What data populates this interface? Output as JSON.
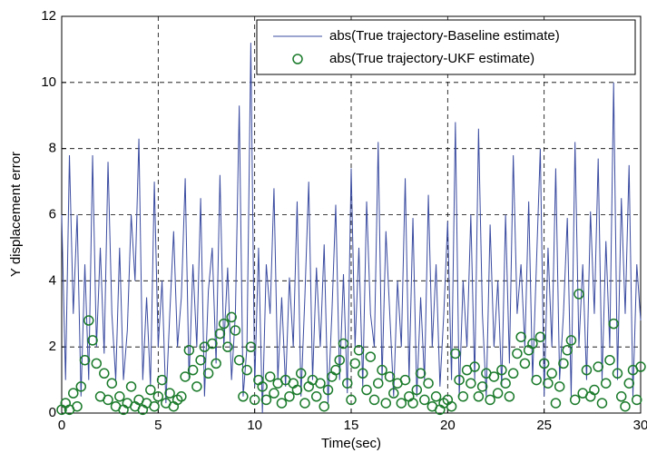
{
  "chart_data": {
    "type": "line",
    "xlabel": "Time(sec)",
    "ylabel": "Y displacement error",
    "xlim": [
      0,
      30
    ],
    "ylim": [
      0,
      12
    ],
    "xticks": [
      0,
      5,
      10,
      15,
      20,
      25,
      30
    ],
    "yticks": [
      0,
      2,
      4,
      6,
      8,
      10,
      12
    ],
    "grid": true,
    "legend": "upper right",
    "x": [
      0,
      0.2,
      0.4,
      0.6,
      0.8,
      1,
      1.2,
      1.4,
      1.6,
      1.8,
      2,
      2.2,
      2.4,
      2.6,
      2.8,
      3,
      3.2,
      3.4,
      3.6,
      3.8,
      4,
      4.2,
      4.4,
      4.6,
      4.8,
      5,
      5.2,
      5.4,
      5.6,
      5.8,
      6,
      6.2,
      6.4,
      6.6,
      6.8,
      7,
      7.2,
      7.4,
      7.6,
      7.8,
      8,
      8.2,
      8.4,
      8.6,
      8.8,
      9,
      9.2,
      9.4,
      9.6,
      9.8,
      10,
      10.2,
      10.4,
      10.6,
      10.8,
      11,
      11.2,
      11.4,
      11.6,
      11.8,
      12,
      12.2,
      12.4,
      12.6,
      12.8,
      13,
      13.2,
      13.4,
      13.6,
      13.8,
      14,
      14.2,
      14.4,
      14.6,
      14.8,
      15,
      15.2,
      15.4,
      15.6,
      15.8,
      16,
      16.2,
      16.4,
      16.6,
      16.8,
      17,
      17.2,
      17.4,
      17.6,
      17.8,
      18,
      18.2,
      18.4,
      18.6,
      18.8,
      19,
      19.2,
      19.4,
      19.6,
      19.8,
      20,
      20.2,
      20.4,
      20.6,
      20.8,
      21,
      21.2,
      21.4,
      21.6,
      21.8,
      22,
      22.2,
      22.4,
      22.6,
      22.8,
      23,
      23.2,
      23.4,
      23.6,
      23.8,
      24,
      24.2,
      24.4,
      24.6,
      24.8,
      25,
      25.2,
      25.4,
      25.6,
      25.8,
      26,
      26.2,
      26.4,
      26.6,
      26.8,
      27,
      27.2,
      27.4,
      27.6,
      27.8,
      28,
      28.2,
      28.4,
      28.6,
      28.8,
      29,
      29.2,
      29.4,
      29.6,
      29.8,
      30
    ],
    "series": [
      {
        "name": "abs(True trajectory-Baseline estimate)",
        "color": "#3a4ba0",
        "mode": "line",
        "values": [
          6,
          1,
          7.8,
          3,
          6,
          0.5,
          4.5,
          1,
          7.8,
          2,
          5,
          1.8,
          7.6,
          3,
          1,
          5,
          1,
          2.5,
          6,
          4,
          8.3,
          1,
          3.5,
          0.8,
          7,
          2,
          4,
          0.3,
          3,
          5.5,
          2,
          3.5,
          7.1,
          1,
          4.5,
          2,
          6.5,
          0.5,
          3.7,
          5,
          1.5,
          7.2,
          2,
          4.4,
          1,
          3,
          9.3,
          0.5,
          2,
          11.2,
          0.8,
          5,
          0,
          4.5,
          3,
          6.8,
          1,
          3.5,
          0.8,
          4.1,
          2,
          6.4,
          0.5,
          3.5,
          7,
          1,
          4.4,
          2,
          5.1,
          0.3,
          3,
          6.3,
          1,
          4.2,
          0.6,
          7.4,
          2,
          5,
          0.8,
          6.4,
          3,
          2,
          8.2,
          1,
          5.5,
          3,
          0.5,
          4,
          2,
          7.1,
          1,
          5.9,
          0.5,
          3.5,
          1,
          6.6,
          2,
          4.5,
          0.8,
          3,
          5.8,
          1,
          8.8,
          0.5,
          4,
          2,
          6,
          1,
          8.6,
          3,
          0.5,
          5.7,
          2,
          4,
          0.8,
          6,
          1.5,
          7.8,
          3,
          4.5,
          2,
          6.4,
          1,
          4.5,
          8,
          0.5,
          5,
          2,
          7.4,
          1,
          3,
          5.9,
          0.5,
          8.2,
          2,
          4.5,
          1,
          6.1,
          3,
          7.7,
          1,
          5.2,
          2,
          10,
          1,
          6.5,
          3,
          7.5,
          0.5,
          4.5,
          2.8
        ]
      },
      {
        "name": "abs(True trajectory-UKF estimate)",
        "color": "#1a7a2a",
        "mode": "marker",
        "values": [
          0.1,
          0.3,
          0.1,
          0.6,
          0.2,
          0.8,
          1.6,
          2.8,
          2.2,
          1.5,
          0.5,
          1.2,
          0.4,
          0.9,
          0.2,
          0.5,
          0.1,
          0.3,
          0.8,
          0.2,
          0.4,
          0.1,
          0.3,
          0.7,
          0.2,
          0.5,
          1,
          0.3,
          0.6,
          0.2,
          0.4,
          0.5,
          1.1,
          1.9,
          1.3,
          0.8,
          1.6,
          2,
          1.2,
          2.1,
          1.5,
          2.4,
          2.7,
          2,
          2.9,
          2.5,
          1.6,
          0.5,
          1.3,
          2,
          0.4,
          1,
          0.8,
          0.4,
          1.1,
          0.6,
          0.9,
          0.3,
          1,
          0.5,
          0.9,
          0.7,
          1.2,
          0.3,
          0.8,
          1,
          0.5,
          0.9,
          0.2,
          0.7,
          1.1,
          1.3,
          1.6,
          2.1,
          0.9,
          0.4,
          1.5,
          1.9,
          1.2,
          0.7,
          1.7,
          0.4,
          0.9,
          1.3,
          0.3,
          1.1,
          0.6,
          0.9,
          0.3,
          1,
          0.5,
          0.3,
          0.7,
          1.2,
          0.4,
          0.9,
          0.2,
          0.5,
          0.1,
          0.3,
          0.4,
          0.2,
          1.8,
          1,
          0.5,
          1.3,
          0.9,
          1.4,
          0.5,
          0.8,
          1.2,
          0.4,
          1.1,
          0.6,
          1.3,
          0.9,
          0.5,
          1.2,
          1.8,
          2.3,
          1.5,
          1.9,
          2.1,
          1,
          2.3,
          1.5,
          0.9,
          1.2,
          0.3,
          0.8,
          1.5,
          1.9,
          2.2,
          0.4,
          3.6,
          0.6,
          1.3,
          0.5,
          0.7,
          1.4,
          0.3,
          0.9,
          1.6,
          2.7,
          1.2,
          0.5,
          0.2,
          0.9,
          1.3,
          0.4,
          1.4
        ]
      }
    ]
  }
}
